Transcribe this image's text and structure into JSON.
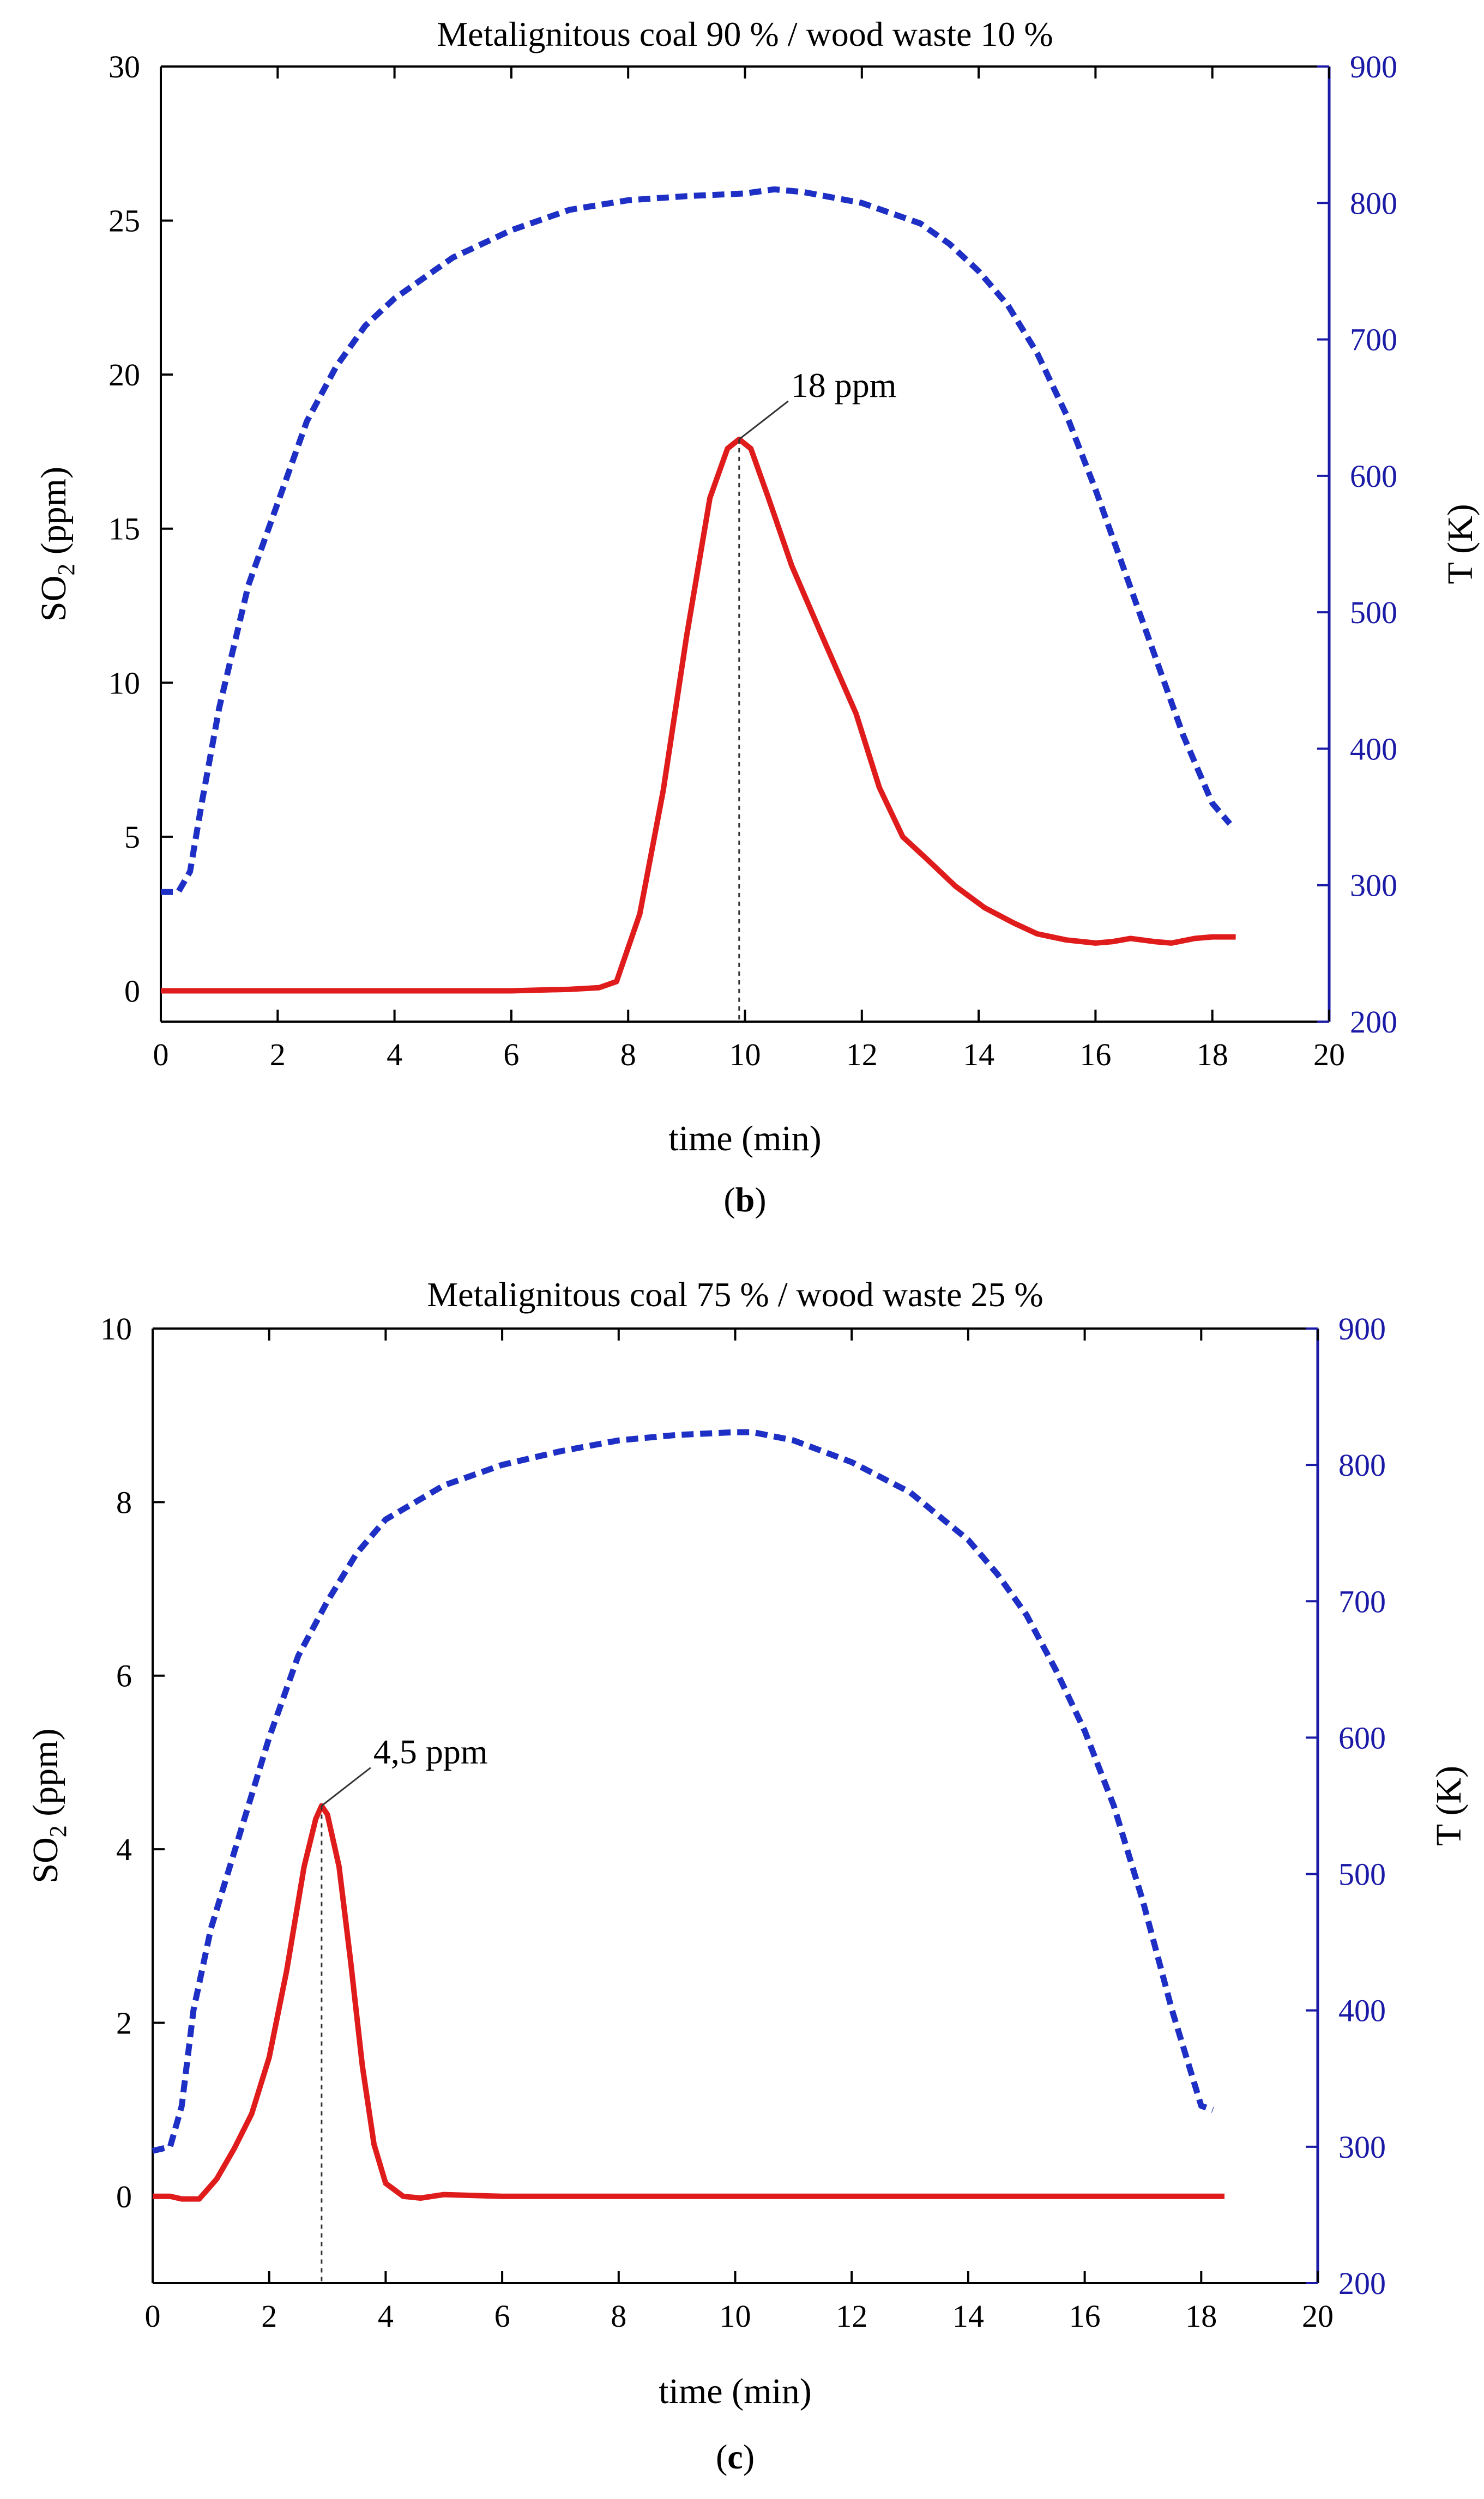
{
  "colors": {
    "so2": "#e01b1b",
    "temperature": "#1d2fc4",
    "axis_right": "#1a1aa6",
    "axis_left": "#000000"
  },
  "chart_data": [
    {
      "panel_label": "b",
      "type": "line",
      "title": "Metalignitous coal 90 % / wood waste 10 %",
      "xlabel": "time (min)",
      "ylabel_main": "SO",
      "ylabel_sub": "2",
      "ylabel_unit": " (ppm)",
      "y2label": "T (K)",
      "xlim": [
        0,
        20
      ],
      "ylim": [
        -1,
        30
      ],
      "y2lim": [
        200,
        900
      ],
      "xticks": [
        "0",
        "2",
        "4",
        "6",
        "8",
        "10",
        "12",
        "14",
        "16",
        "18",
        "20"
      ],
      "yticks": [
        "0",
        "5",
        "10",
        "15",
        "20",
        "25",
        "30"
      ],
      "y2ticks": [
        "200",
        "300",
        "400",
        "500",
        "600",
        "700",
        "800",
        "900"
      ],
      "annotation": {
        "text": "18 ppm",
        "x": 9.9,
        "y": 17.9
      },
      "series": [
        {
          "name": "SO2",
          "axis": "left",
          "style": "solid",
          "x": [
            0,
            1,
            2,
            3,
            4,
            5,
            6,
            7,
            7.5,
            7.8,
            8.2,
            8.6,
            9.0,
            9.4,
            9.7,
            9.9,
            10.1,
            10.4,
            10.8,
            11.3,
            11.9,
            12.3,
            12.7,
            13.1,
            13.6,
            14.1,
            14.6,
            15.0,
            15.5,
            16.0,
            16.3,
            16.6,
            17.0,
            17.3,
            17.7,
            18.0,
            18.4
          ],
          "y": [
            0,
            0,
            0,
            0,
            0,
            0,
            0,
            0.05,
            0.1,
            0.3,
            2.5,
            6.5,
            11.5,
            16.0,
            17.6,
            17.9,
            17.6,
            16.0,
            13.8,
            11.6,
            9.0,
            6.6,
            5.0,
            4.3,
            3.4,
            2.7,
            2.2,
            1.85,
            1.65,
            1.55,
            1.6,
            1.7,
            1.6,
            1.55,
            1.7,
            1.75,
            1.75
          ]
        },
        {
          "name": "T",
          "axis": "right",
          "style": "dashed",
          "x": [
            0,
            0.3,
            0.5,
            0.7,
            1.0,
            1.5,
            2.0,
            2.5,
            3.0,
            3.5,
            4.0,
            5.0,
            6.0,
            7.0,
            8.0,
            9.0,
            10.0,
            10.5,
            11.0,
            12.0,
            13.0,
            13.5,
            14.0,
            14.5,
            15.0,
            15.5,
            16.0,
            16.5,
            17.0,
            17.5,
            18.0,
            18.3
          ],
          "y": [
            295,
            295,
            310,
            360,
            430,
            520,
            580,
            640,
            680,
            710,
            730,
            760,
            780,
            795,
            802,
            805,
            807,
            810,
            808,
            800,
            785,
            770,
            750,
            725,
            690,
            645,
            590,
            530,
            470,
            410,
            360,
            345
          ]
        }
      ]
    },
    {
      "panel_label": "c",
      "type": "line",
      "title": "Metalignitous coal 75 % / wood waste 25 %",
      "xlabel": "time (min)",
      "ylabel_main": "SO",
      "ylabel_sub": "2",
      "ylabel_unit": " (ppm)",
      "y2label": "T (K)",
      "xlim": [
        0,
        20
      ],
      "ylim": [
        -1,
        10
      ],
      "y2lim": [
        200,
        900
      ],
      "xticks": [
        "0",
        "2",
        "4",
        "6",
        "8",
        "10",
        "12",
        "14",
        "16",
        "18",
        "20"
      ],
      "yticks": [
        "0",
        "2",
        "4",
        "6",
        "8",
        "10"
      ],
      "y2ticks": [
        "200",
        "300",
        "400",
        "500",
        "600",
        "700",
        "800",
        "900"
      ],
      "annotation": {
        "text": "4,5 ppm",
        "x": 2.9,
        "y": 4.5
      },
      "series": [
        {
          "name": "SO2",
          "axis": "left",
          "style": "solid",
          "x": [
            0,
            0.3,
            0.5,
            0.8,
            1.1,
            1.4,
            1.7,
            2.0,
            2.3,
            2.6,
            2.8,
            2.9,
            3.0,
            3.2,
            3.4,
            3.6,
            3.8,
            4.0,
            4.3,
            4.6,
            5.0,
            6.0,
            8.0,
            10.0,
            12.0,
            14.0,
            16.0,
            18.0,
            18.4
          ],
          "y": [
            0,
            0,
            -0.03,
            -0.03,
            0.2,
            0.55,
            0.95,
            1.6,
            2.6,
            3.8,
            4.35,
            4.5,
            4.4,
            3.8,
            2.7,
            1.5,
            0.6,
            0.15,
            0.0,
            -0.02,
            0.02,
            0,
            0,
            0,
            0,
            0,
            0,
            0,
            0
          ]
        },
        {
          "name": "T",
          "axis": "right",
          "style": "dashed",
          "x": [
            0,
            0.3,
            0.5,
            0.7,
            1.0,
            1.5,
            2.0,
            2.5,
            3.0,
            3.5,
            4.0,
            5.0,
            6.0,
            7.0,
            8.0,
            9.0,
            10.0,
            10.3,
            11.0,
            12.0,
            13.0,
            14.0,
            14.5,
            15.0,
            15.5,
            16.0,
            16.5,
            17.0,
            17.5,
            18.0,
            18.2
          ],
          "y": [
            297,
            300,
            330,
            400,
            460,
            530,
            600,
            660,
            700,
            735,
            760,
            785,
            800,
            810,
            818,
            822,
            824,
            824,
            818,
            802,
            780,
            745,
            720,
            690,
            650,
            605,
            550,
            480,
            400,
            330,
            327
          ]
        }
      ]
    }
  ]
}
